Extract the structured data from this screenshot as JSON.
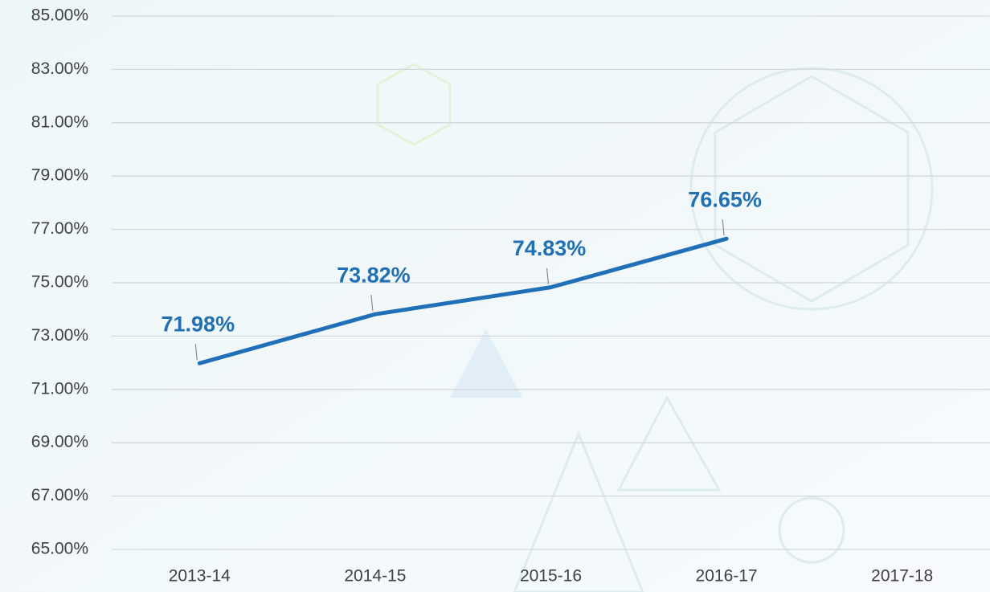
{
  "chart_data": {
    "type": "line",
    "categories": [
      "2013-14",
      "2014-15",
      "2015-16",
      "2016-17",
      "2017-18"
    ],
    "values": [
      71.98,
      73.82,
      74.83,
      76.65,
      null
    ],
    "value_labels": [
      "71.98%",
      "73.82%",
      "74.83%",
      "76.65%",
      null
    ],
    "color": "#1f70b8",
    "ylim": [
      65,
      85
    ],
    "yticks": [
      {
        "value": 65,
        "label": "65.00%"
      },
      {
        "value": 67,
        "label": "67.00%"
      },
      {
        "value": 69,
        "label": "69.00%"
      },
      {
        "value": 71,
        "label": "71.00%"
      },
      {
        "value": 73,
        "label": "73.00%"
      },
      {
        "value": 75,
        "label": "75.00%"
      },
      {
        "value": 77,
        "label": "77.00%"
      },
      {
        "value": 79,
        "label": "79.00%"
      },
      {
        "value": 81,
        "label": "81.00%"
      },
      {
        "value": 83,
        "label": "83.00%"
      },
      {
        "value": 85,
        "label": "85.00%"
      }
    ],
    "grid": true
  }
}
